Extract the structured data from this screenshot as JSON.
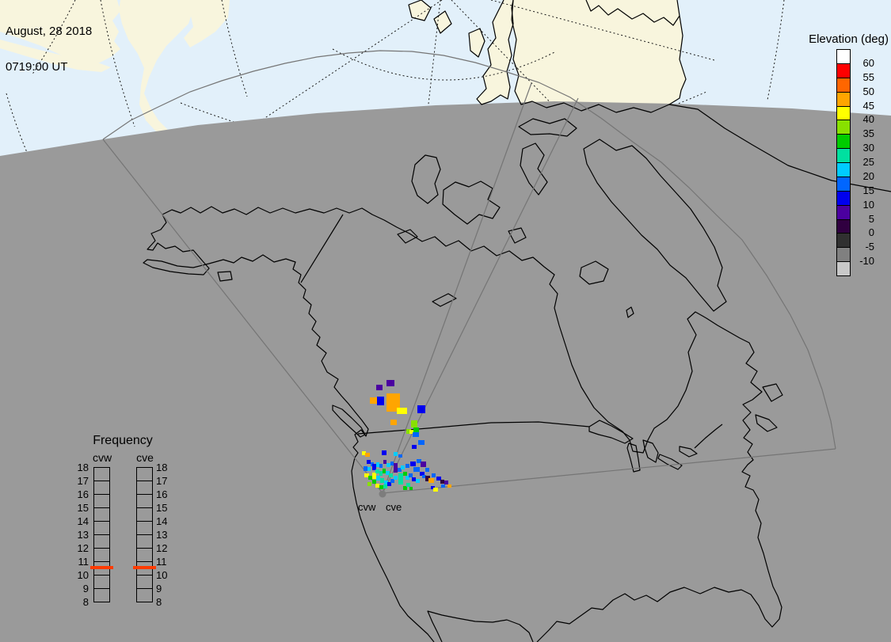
{
  "header": {
    "date_line": "August, 28 2018",
    "time_line": "0719:00 UT"
  },
  "elevation_legend": {
    "title": "Elevation (deg)",
    "tick_labels": [
      "60",
      "55",
      "50",
      "45",
      "40",
      "35",
      "30",
      "25",
      "20",
      "15",
      "10",
      "5",
      "0",
      "-5",
      "-10"
    ],
    "colors": [
      "#ffffff",
      "#ff0000",
      "#ff6600",
      "#ffa500",
      "#ffff00",
      "#88e000",
      "#00cc00",
      "#00e0a0",
      "#00ccff",
      "#0066ff",
      "#0000ee",
      "#4b00a0",
      "#300040",
      "#303030",
      "#808080",
      "#c8c8c8"
    ]
  },
  "frequency_legend": {
    "title": "Frequency",
    "columns": [
      "cvw",
      "cve"
    ],
    "tick_labels": [
      "18",
      "17",
      "16",
      "15",
      "14",
      "13",
      "12",
      "11",
      "10",
      "9",
      "8"
    ],
    "marker_color": "#ff3b00"
  },
  "map": {
    "radar_site_labels": [
      "cvw",
      "cve"
    ],
    "colors": {
      "day_ocean": "#e2f0fa",
      "day_land": "#f8f5dd",
      "night": "#9a9a9a",
      "coastline": "#000000",
      "fov_line": "#757575",
      "graticule": "#1a1a1a",
      "radar_dot": "#7d7d7d"
    },
    "palette": {
      "or": "#ffa500",
      "ye": "#ffff00",
      "yg": "#88e000",
      "gr": "#00cc00",
      "sp": "#00e0a0",
      "cy": "#00ccff",
      "db": "#0066ff",
      "bl": "#0000ee",
      "in": "#4b00a0",
      "dp": "#300040"
    },
    "echo_cells": [
      [
        475,
        486,
        8,
        7,
        "in"
      ],
      [
        488,
        480,
        10,
        8,
        "in"
      ],
      [
        467,
        502,
        9,
        8,
        "or"
      ],
      [
        476,
        501,
        9,
        11,
        "bl"
      ],
      [
        488,
        497,
        17,
        23,
        "or"
      ],
      [
        501,
        515,
        13,
        8,
        "ye"
      ],
      [
        493,
        530,
        8,
        7,
        "or"
      ],
      [
        527,
        512,
        10,
        10,
        "bl"
      ],
      [
        519,
        531,
        8,
        9,
        "yg"
      ],
      [
        522,
        540,
        7,
        6,
        "gr"
      ],
      [
        513,
        542,
        6,
        6,
        "yg"
      ],
      [
        517,
        543,
        5,
        5,
        "ye"
      ],
      [
        521,
        546,
        8,
        6,
        "db"
      ],
      [
        528,
        556,
        8,
        6,
        "db"
      ],
      [
        520,
        562,
        6,
        5,
        "bl"
      ],
      [
        457,
        570,
        5,
        5,
        "ye"
      ],
      [
        461,
        572,
        6,
        5,
        "or"
      ],
      [
        482,
        569,
        6,
        6,
        "bl"
      ],
      [
        497,
        571,
        5,
        5,
        "cy"
      ],
      [
        503,
        574,
        5,
        4,
        "db"
      ],
      [
        463,
        581,
        5,
        5,
        "bl"
      ],
      [
        468,
        584,
        4,
        5,
        "db"
      ],
      [
        459,
        589,
        5,
        6,
        "db"
      ],
      [
        464,
        590,
        4,
        5,
        "cy"
      ],
      [
        470,
        586,
        5,
        8,
        "bl"
      ],
      [
        475,
        584,
        4,
        6,
        "cy"
      ],
      [
        479,
        586,
        4,
        5,
        "db"
      ],
      [
        484,
        581,
        4,
        5,
        "in"
      ],
      [
        488,
        585,
        5,
        5,
        "cy"
      ],
      [
        493,
        583,
        4,
        5,
        "db"
      ],
      [
        497,
        585,
        5,
        12,
        "in"
      ],
      [
        502,
        591,
        5,
        5,
        "db"
      ],
      [
        506,
        588,
        5,
        5,
        "cy"
      ],
      [
        512,
        586,
        5,
        5,
        "db"
      ],
      [
        518,
        583,
        7,
        6,
        "bl"
      ],
      [
        526,
        580,
        6,
        5,
        "db"
      ],
      [
        531,
        583,
        7,
        7,
        "in"
      ],
      [
        522,
        590,
        8,
        6,
        "db"
      ],
      [
        530,
        596,
        6,
        5,
        "bl"
      ],
      [
        537,
        591,
        5,
        5,
        "db"
      ],
      [
        460,
        598,
        6,
        5,
        "ye"
      ],
      [
        465,
        601,
        5,
        5,
        "gr"
      ],
      [
        470,
        597,
        5,
        8,
        "ye"
      ],
      [
        474,
        593,
        5,
        5,
        "sp"
      ],
      [
        479,
        595,
        4,
        6,
        "sp"
      ],
      [
        483,
        592,
        4,
        6,
        "gr"
      ],
      [
        487,
        595,
        5,
        5,
        "cy"
      ],
      [
        491,
        598,
        5,
        5,
        "sp"
      ],
      [
        475,
        601,
        5,
        6,
        "cy"
      ],
      [
        480,
        604,
        5,
        6,
        "sp"
      ],
      [
        485,
        607,
        5,
        5,
        "cy"
      ],
      [
        470,
        606,
        5,
        5,
        "gr"
      ],
      [
        464,
        609,
        5,
        5,
        "yg"
      ],
      [
        474,
        611,
        5,
        5,
        "ye"
      ],
      [
        479,
        613,
        5,
        5,
        "gr"
      ],
      [
        484,
        612,
        5,
        5,
        "sp"
      ],
      [
        489,
        609,
        5,
        5,
        "bl"
      ],
      [
        493,
        605,
        5,
        5,
        "db"
      ],
      [
        497,
        601,
        5,
        5,
        "cy"
      ],
      [
        503,
        598,
        6,
        14,
        "sp"
      ],
      [
        509,
        596,
        5,
        5,
        "gr"
      ],
      [
        512,
        601,
        5,
        5,
        "cy"
      ],
      [
        516,
        598,
        5,
        5,
        "db"
      ],
      [
        520,
        603,
        5,
        5,
        "bl"
      ],
      [
        525,
        605,
        5,
        5,
        "cy"
      ],
      [
        509,
        614,
        5,
        5,
        "gr"
      ],
      [
        513,
        610,
        5,
        5,
        "sp"
      ],
      [
        517,
        615,
        4,
        4,
        "gr"
      ],
      [
        533,
        600,
        5,
        4,
        "db"
      ],
      [
        537,
        601,
        6,
        7,
        "dp"
      ],
      [
        541,
        604,
        7,
        6,
        "or"
      ],
      [
        545,
        598,
        5,
        5,
        "db"
      ],
      [
        551,
        602,
        6,
        5,
        "bl"
      ],
      [
        556,
        606,
        5,
        5,
        "dp"
      ],
      [
        544,
        614,
        5,
        4,
        "bl"
      ],
      [
        547,
        616,
        6,
        5,
        "ye"
      ],
      [
        557,
        612,
        5,
        4,
        "db"
      ],
      [
        561,
        607,
        5,
        5,
        "in"
      ],
      [
        565,
        612,
        5,
        4,
        "or"
      ]
    ]
  }
}
